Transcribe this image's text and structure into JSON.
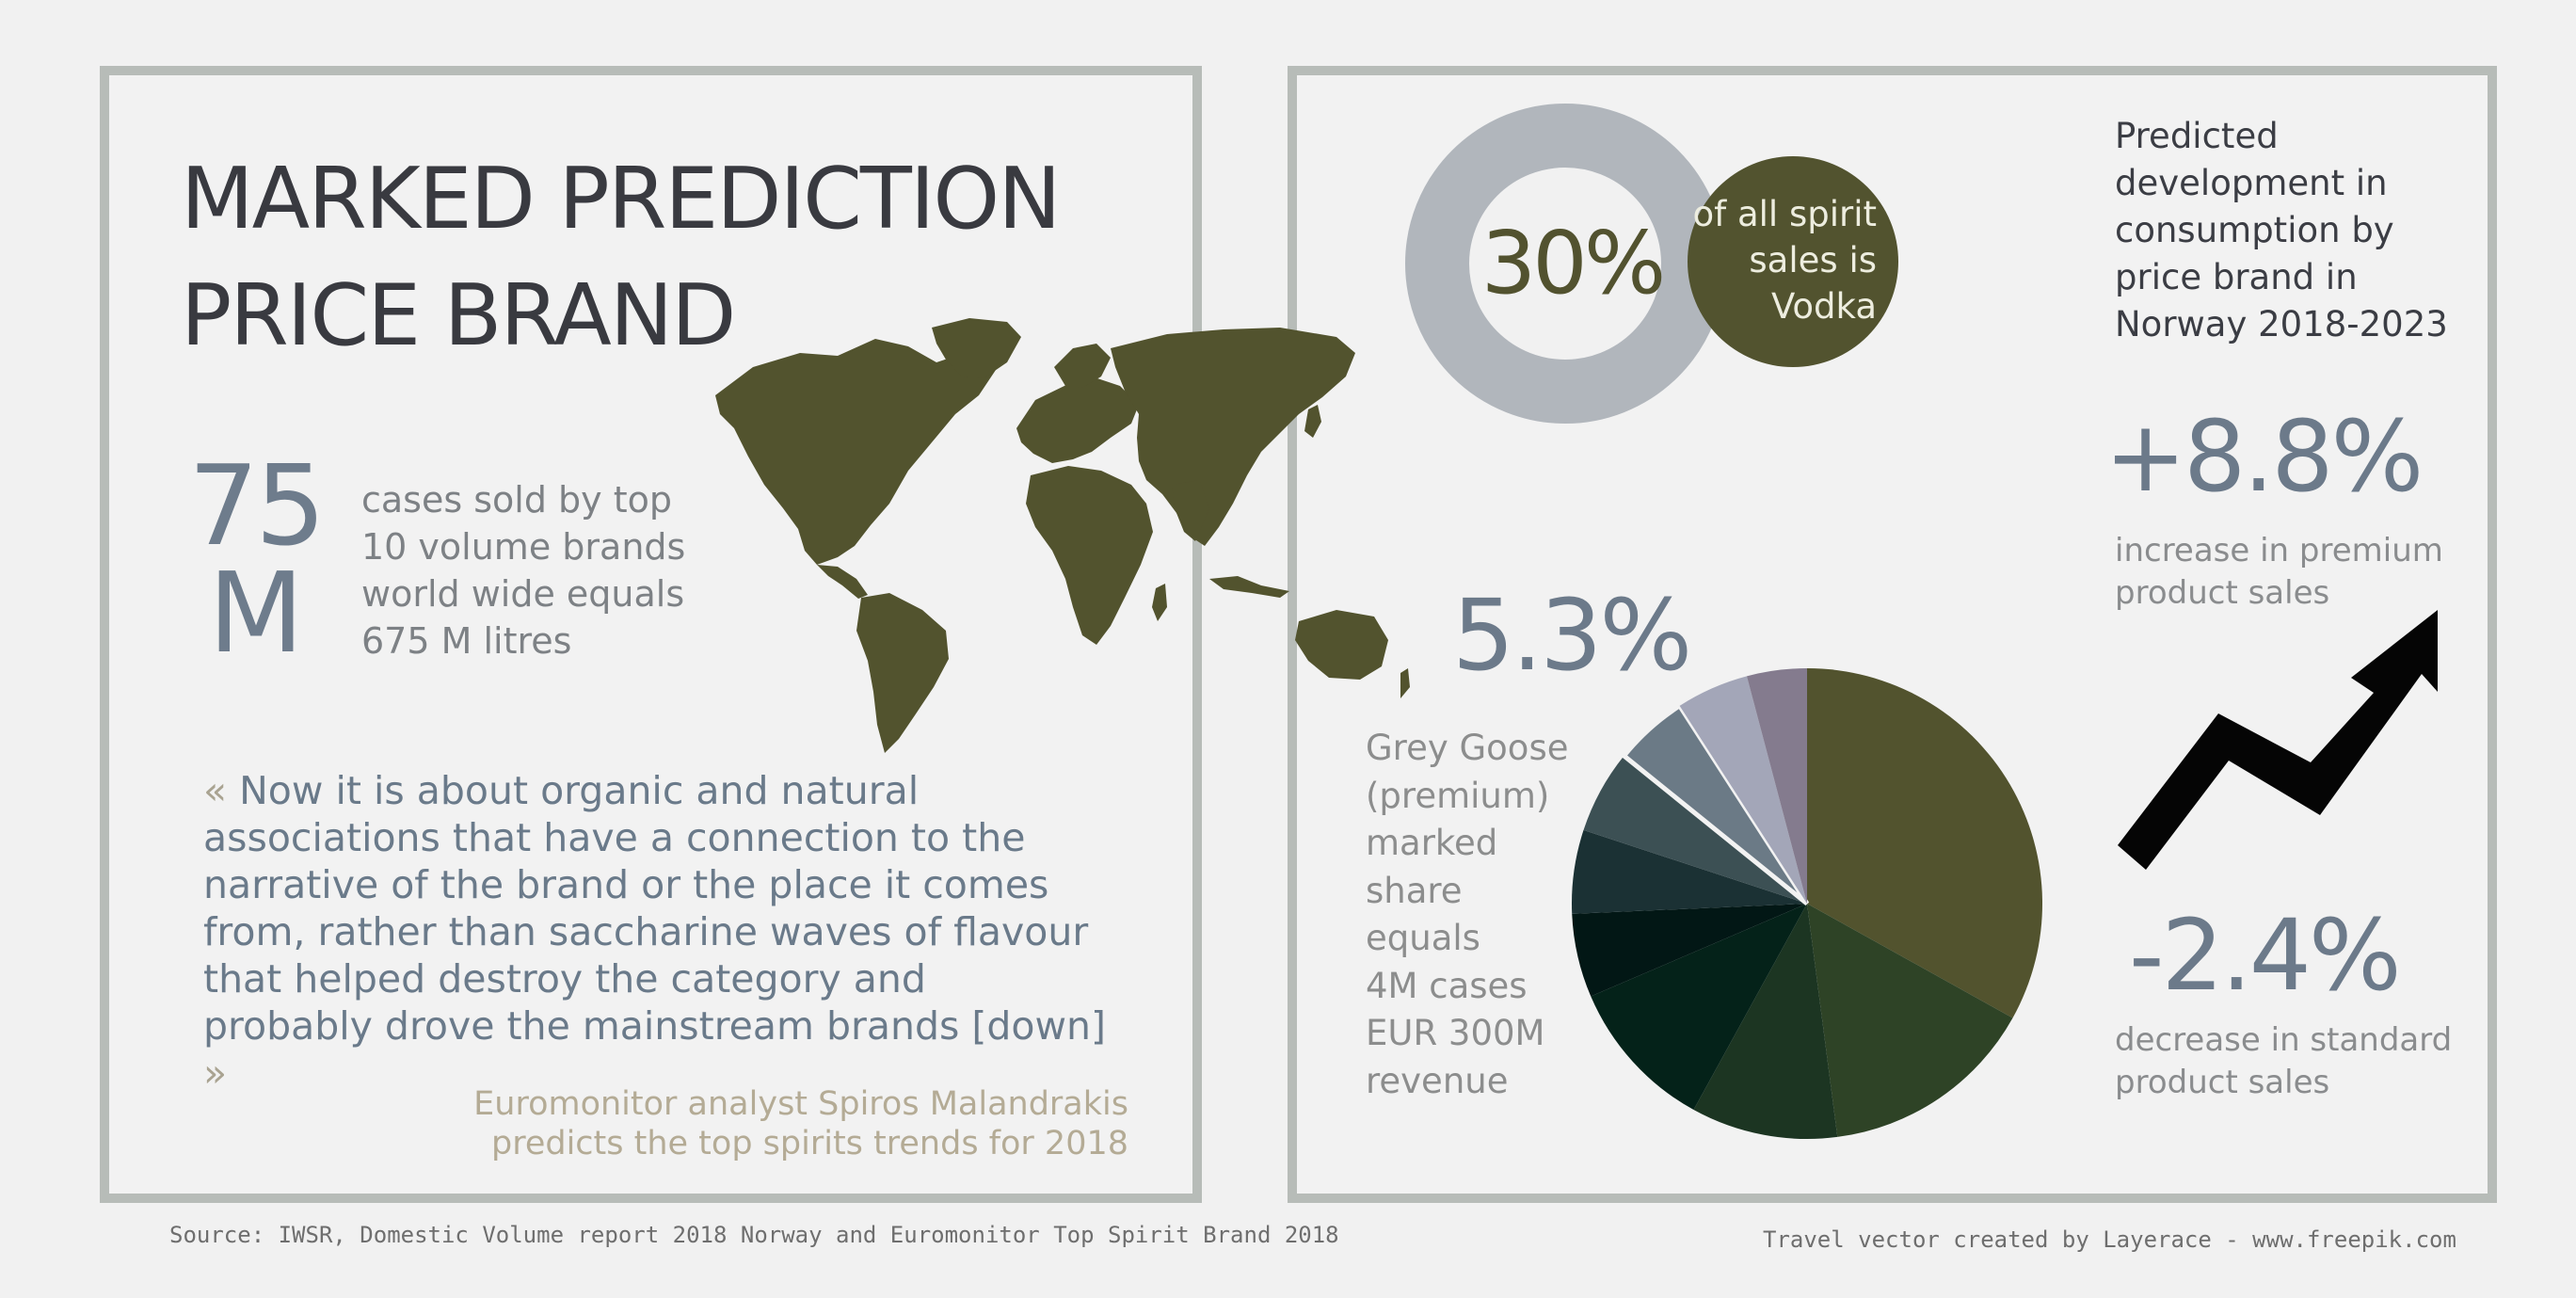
{
  "title": {
    "line1": "MARKED PREDICTION",
    "line2": "PRICE BRAND"
  },
  "volume": {
    "number_line1": "75",
    "number_line2": "M",
    "description": "cases sold by top 10 volume brands world wide equals 675 M litres"
  },
  "quote": {
    "open": "«",
    "text": "Now it is about organic and natural associations that have a connection to the narrative of the brand or the place it comes from, rather than saccharine waves of flavour that helped destroy the category and probably drove the mainstream brands [down]",
    "close": "»"
  },
  "attribution": {
    "line1": "Euromonitor analyst Spiros Malandrakis",
    "line2": "predicts the top spirits trends for 2018"
  },
  "vodka": {
    "percent": "30%",
    "line1": "of all spirit",
    "line2": "sales is",
    "line3": "Vodka",
    "share_fraction": 0.3
  },
  "heading": "Predicted development in consumption by price brand in Norway 2018-2023",
  "premium": {
    "value": "+8.8%",
    "line1": "increase in premium",
    "line2": "product sales"
  },
  "standard": {
    "value": "-2.4%",
    "line1": "decrease in standard",
    "line2": "product sales"
  },
  "grey_goose": {
    "percent": "5.3%",
    "lines": [
      "Grey Goose",
      "(premium)",
      "marked",
      "share",
      "equals",
      "4M cases",
      "EUR 300M",
      "revenue"
    ]
  },
  "chart_data": {
    "type": "pie",
    "highlight_value": "5.3%",
    "values": [
      34.5,
      15.5,
      10.5,
      11,
      6,
      6,
      6,
      5.3,
      5.2,
      4.3
    ],
    "colors": [
      "#52532e",
      "#2e4326",
      "#1c3522",
      "#042219",
      "#021715",
      "#1b3134",
      "#3c5054",
      "#6b7a86",
      "#a3a6b8",
      "#847b8e"
    ],
    "highlight_index": 7
  },
  "colors": {
    "olive": "#52532f",
    "slate_text": "#6c7a8a",
    "panel_border": "#b7bcb8",
    "ring_grey": "#b1b6bc"
  },
  "icons": {
    "map": "world-map-icon",
    "arrow": "trend-up-arrow-icon"
  },
  "footer": {
    "source": "Source: IWSR, Domestic Volume report 2018 Norway and Euromonitor Top Spirit Brand 2018",
    "credit": "Travel vector created by Layerace - www.freepik.com"
  }
}
